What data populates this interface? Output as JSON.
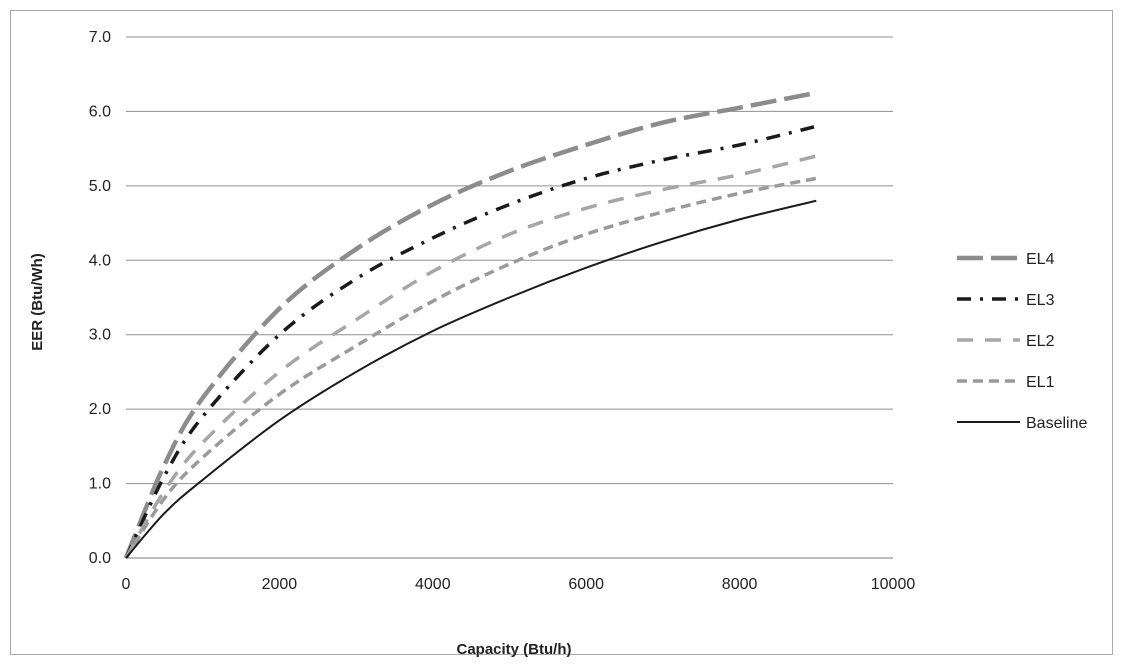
{
  "chart_data": {
    "type": "line",
    "title": "",
    "xlabel": "Capacity (Btu/h)",
    "ylabel": "EER (Btu/Wh)",
    "xlim": [
      0,
      10000
    ],
    "ylim": [
      0,
      7
    ],
    "x_ticks": [
      "0",
      "2000",
      "4000",
      "6000",
      "8000",
      "10000"
    ],
    "y_ticks": [
      "0.0",
      "1.0",
      "2.0",
      "3.0",
      "4.0",
      "5.0",
      "6.0",
      "7.0"
    ],
    "grid": "horizontal",
    "legend_position": "right",
    "x": [
      0,
      500,
      1000,
      2000,
      3000,
      4000,
      5000,
      6000,
      7000,
      8000,
      9000
    ],
    "series": [
      {
        "name": "EL4",
        "color": "#8c8c8c",
        "dash": "long-dash",
        "values": [
          0,
          1.25,
          2.15,
          3.35,
          4.15,
          4.75,
          5.2,
          5.55,
          5.85,
          6.05,
          6.25
        ]
      },
      {
        "name": "EL3",
        "color": "#1a1a1a",
        "dash": "dash-dot",
        "values": [
          0,
          1.1,
          1.9,
          3.0,
          3.75,
          4.3,
          4.75,
          5.1,
          5.35,
          5.55,
          5.8
        ]
      },
      {
        "name": "EL2",
        "color": "#a6a6a6",
        "dash": "long-dash-gap",
        "values": [
          0,
          0.9,
          1.55,
          2.5,
          3.2,
          3.85,
          4.35,
          4.7,
          4.95,
          5.15,
          5.4
        ]
      },
      {
        "name": "EL1",
        "color": "#9a9a9a",
        "dash": "dash",
        "values": [
          0,
          0.8,
          1.35,
          2.2,
          2.85,
          3.45,
          3.95,
          4.35,
          4.65,
          4.9,
          5.1
        ]
      },
      {
        "name": "Baseline",
        "color": "#1a1a1a",
        "dash": "solid",
        "values": [
          0,
          0.6,
          1.05,
          1.85,
          2.5,
          3.05,
          3.5,
          3.9,
          4.25,
          4.55,
          4.8
        ]
      }
    ]
  }
}
